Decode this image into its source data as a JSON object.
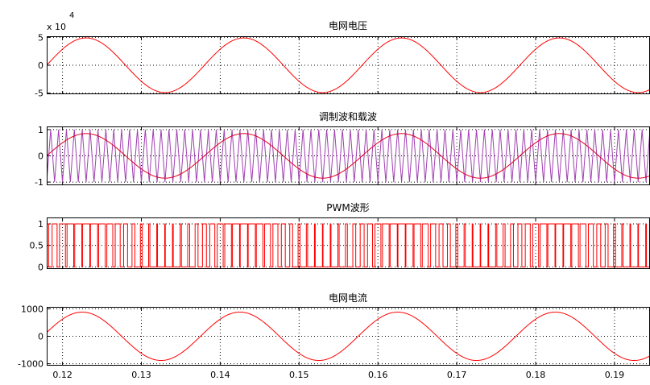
{
  "chart_data": [
    {
      "type": "line",
      "title": "电网电压",
      "exponent_label": "x 10",
      "exponent_power": "4",
      "x_range": [
        0.118,
        0.1945
      ],
      "ylim": [
        -5.2,
        5.2
      ],
      "y_ticks": [
        5,
        0,
        -5
      ],
      "y_tick_labels": [
        "5",
        "0",
        "-5"
      ],
      "grid": true,
      "series": [
        {
          "kind": "sine",
          "color": "#ff0000",
          "amplitude": 4.9,
          "frequency_hz": 50,
          "phase_zero_x": 0.118
        }
      ]
    },
    {
      "type": "line",
      "title": "调制波和载波",
      "x_range": [
        0.118,
        0.1945
      ],
      "ylim": [
        -1.12,
        1.12
      ],
      "y_ticks": [
        1,
        0,
        -1
      ],
      "y_tick_labels": [
        "1",
        "0",
        "-1"
      ],
      "grid": true,
      "series": [
        {
          "kind": "triangle",
          "color": "#a040b0",
          "amplitude": 1,
          "frequency_hz": 1000
        },
        {
          "kind": "sine",
          "color": "#e00020",
          "amplitude": 0.85,
          "frequency_hz": 50,
          "phase_zero_x": 0.118
        }
      ]
    },
    {
      "type": "line",
      "title": "PWM波形",
      "x_range": [
        0.118,
        0.1945
      ],
      "ylim": [
        -0.05,
        1.15
      ],
      "y_ticks": [
        1,
        0.5,
        0
      ],
      "y_tick_labels": [
        "1",
        "0.5",
        "0"
      ],
      "grid": true,
      "series": [
        {
          "kind": "pwm",
          "color": "#ff0000",
          "low": 0,
          "high": 1,
          "carrier_hz": 1000,
          "modulation_amplitude": 0.85,
          "modulation_hz": 50,
          "phase_zero_x": 0.118
        }
      ]
    },
    {
      "type": "line",
      "title": "电网电流",
      "x_range": [
        0.118,
        0.1945
      ],
      "ylim": [
        -1070,
        1070
      ],
      "y_ticks": [
        1000,
        0,
        -1000
      ],
      "y_tick_labels": [
        "1000",
        "0",
        "-1000"
      ],
      "grid": true,
      "x_ticks": [
        0.12,
        0.13,
        0.14,
        0.15,
        0.16,
        0.17,
        0.18,
        0.19
      ],
      "x_tick_labels": [
        "0.12",
        "0.13",
        "0.14",
        "0.15",
        "0.16",
        "0.17",
        "0.18",
        "0.19"
      ],
      "series": [
        {
          "kind": "sine",
          "color": "#ff0000",
          "amplitude": 880,
          "frequency_hz": 50,
          "phase_zero_x": 0.1175
        }
      ]
    }
  ]
}
